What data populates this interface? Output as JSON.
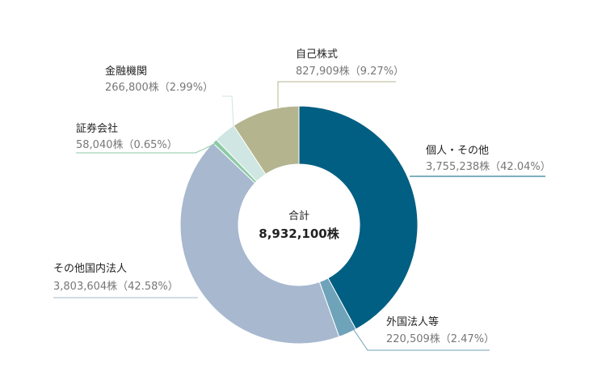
{
  "chart_data": {
    "type": "pie",
    "donut": true,
    "unit": "株",
    "center": {
      "title": "合計",
      "total": "8,932,100株"
    },
    "slices": [
      {
        "name": "個人・その他",
        "value": 3755238,
        "percent": 42.04,
        "color": "#005f82",
        "value_label": "3,755,238株（42.04%）"
      },
      {
        "name": "外国法人等",
        "value": 220509,
        "percent": 2.47,
        "color": "#6fa3ba",
        "value_label": "220,509株（2.47%）"
      },
      {
        "name": "その他国内法人",
        "value": 3803604,
        "percent": 42.58,
        "color": "#a7b8cf",
        "value_label": "3,803,604株（42.58%）"
      },
      {
        "name": "証券会社",
        "value": 58040,
        "percent": 0.65,
        "color": "#8ccaa5",
        "value_label": "58,040株（0.65%）"
      },
      {
        "name": "金融機関",
        "value": 266800,
        "percent": 2.99,
        "color": "#cfe6e2",
        "value_label": "266,800株（2.99%）"
      },
      {
        "name": "自己株式",
        "value": 827909,
        "percent": 9.27,
        "color": "#b4b58f",
        "value_label": "827,909株（9.27%）"
      }
    ]
  }
}
